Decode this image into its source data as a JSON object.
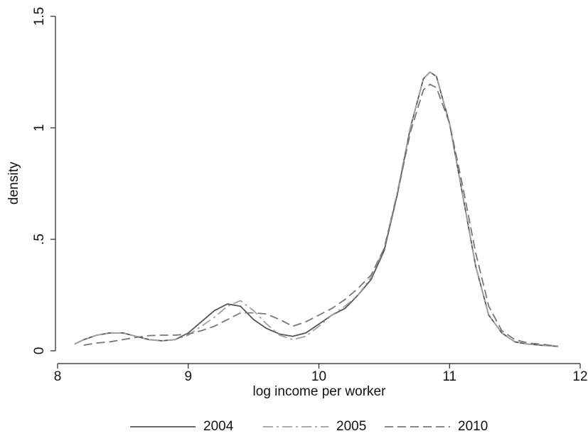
{
  "chart_data": {
    "type": "line",
    "xlabel": "log income per worker",
    "ylabel": "density",
    "x": [
      8.13,
      8.2,
      8.3,
      8.4,
      8.5,
      8.6,
      8.7,
      8.8,
      8.9,
      9.0,
      9.1,
      9.2,
      9.3,
      9.4,
      9.5,
      9.6,
      9.7,
      9.8,
      9.9,
      10.0,
      10.1,
      10.2,
      10.3,
      10.4,
      10.5,
      10.6,
      10.7,
      10.8,
      10.85,
      10.9,
      11.0,
      11.1,
      11.2,
      11.3,
      11.4,
      11.5,
      11.6,
      11.7,
      11.83
    ],
    "series": [
      {
        "name": "2004",
        "color": "#555555",
        "dash": "solid",
        "values": [
          0.03,
          0.05,
          0.07,
          0.08,
          0.08,
          0.065,
          0.05,
          0.045,
          0.05,
          0.08,
          0.13,
          0.18,
          0.21,
          0.2,
          0.14,
          0.1,
          0.075,
          0.065,
          0.08,
          0.12,
          0.16,
          0.19,
          0.25,
          0.32,
          0.45,
          0.7,
          1.0,
          1.22,
          1.25,
          1.23,
          1.02,
          0.7,
          0.38,
          0.16,
          0.08,
          0.04,
          0.03,
          0.025,
          0.02
        ]
      },
      {
        "name": "2005",
        "color": "#a0a0a0",
        "dash": "dashdot",
        "values": [
          0.03,
          0.05,
          0.07,
          0.08,
          0.08,
          0.065,
          0.05,
          0.045,
          0.05,
          0.07,
          0.11,
          0.15,
          0.2,
          0.225,
          0.18,
          0.12,
          0.07,
          0.05,
          0.065,
          0.11,
          0.16,
          0.2,
          0.25,
          0.33,
          0.46,
          0.71,
          1.0,
          1.22,
          1.25,
          1.23,
          1.02,
          0.7,
          0.38,
          0.16,
          0.08,
          0.04,
          0.03,
          0.025,
          0.02
        ]
      },
      {
        "name": "2010",
        "color": "#777777",
        "dash": "dash",
        "values": [
          null,
          0.025,
          0.035,
          0.04,
          0.05,
          0.06,
          0.068,
          0.07,
          0.07,
          0.075,
          0.09,
          0.11,
          0.14,
          0.17,
          0.17,
          0.165,
          0.14,
          0.11,
          0.13,
          0.16,
          0.19,
          0.23,
          0.28,
          0.34,
          0.46,
          0.7,
          0.98,
          1.17,
          1.195,
          1.18,
          1.02,
          0.74,
          0.44,
          0.2,
          0.09,
          0.05,
          0.035,
          0.03,
          0.02
        ]
      }
    ],
    "xlim": [
      8,
      12
    ],
    "xticks": [
      8,
      9,
      10,
      11,
      12
    ],
    "ylim": [
      0,
      1.5
    ],
    "yticks": [
      0,
      {
        "value": 0.5,
        "label": ".5"
      },
      1,
      1.5
    ],
    "grid": false,
    "legend": "bottom"
  }
}
